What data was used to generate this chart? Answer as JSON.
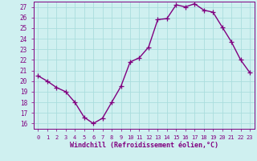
{
  "x": [
    0,
    1,
    2,
    3,
    4,
    5,
    6,
    7,
    8,
    9,
    10,
    11,
    12,
    13,
    14,
    15,
    16,
    17,
    18,
    19,
    20,
    21,
    22,
    23
  ],
  "y": [
    20.5,
    20.0,
    19.4,
    19.0,
    18.0,
    16.6,
    16.0,
    16.5,
    18.0,
    19.5,
    21.8,
    22.2,
    23.2,
    25.8,
    25.9,
    27.2,
    27.0,
    27.3,
    26.7,
    26.5,
    25.1,
    23.7,
    22.0,
    20.8
  ],
  "line_color": "#800080",
  "marker": "+",
  "bg_color": "#cff0f0",
  "grid_color": "#aadddd",
  "xlabel": "Windchill (Refroidissement éolien,°C)",
  "ylim": [
    15.5,
    27.5
  ],
  "xlim": [
    -0.5,
    23.5
  ],
  "yticks": [
    16,
    17,
    18,
    19,
    20,
    21,
    22,
    23,
    24,
    25,
    26,
    27
  ],
  "xticks": [
    0,
    1,
    2,
    3,
    4,
    5,
    6,
    7,
    8,
    9,
    10,
    11,
    12,
    13,
    14,
    15,
    16,
    17,
    18,
    19,
    20,
    21,
    22,
    23
  ],
  "tick_color": "#800080",
  "label_color": "#800080",
  "axis_color": "#800080",
  "line_width": 1.0,
  "marker_size": 4
}
